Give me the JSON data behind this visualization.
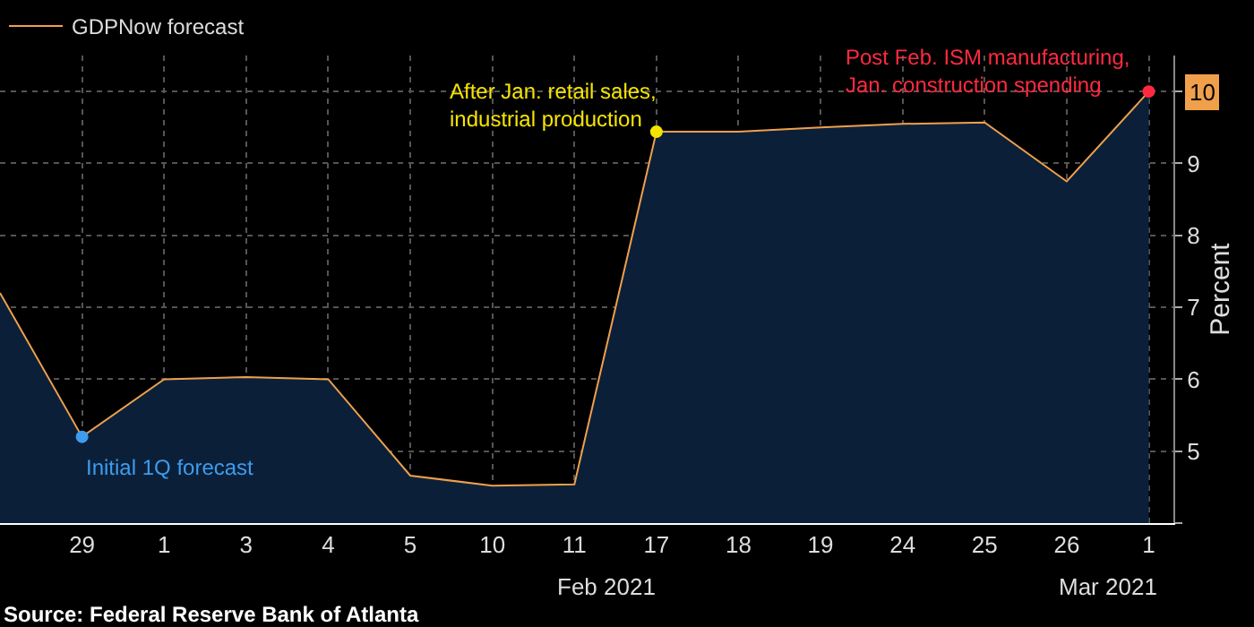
{
  "chart_data": {
    "type": "area",
    "categories": [
      null,
      "29",
      "1",
      "3",
      "4",
      "5",
      "10",
      "11",
      "17",
      "18",
      "19",
      "24",
      "25",
      "26",
      "1"
    ],
    "series": [
      {
        "color": "#0b2038",
        "values": [
          7.2,
          5.2,
          6.0,
          6.03,
          6.0,
          4.66,
          4.52,
          4.54,
          9.44,
          9.44,
          9.5,
          9.55,
          9.57,
          8.75,
          10.0
        ]
      },
      {
        "type": "line",
        "name": "GDPNow forecast",
        "color": "#f0a04b",
        "values": [
          7.2,
          5.2,
          6.0,
          6.03,
          6.0,
          4.66,
          4.52,
          4.54,
          9.44,
          9.44,
          9.5,
          9.55,
          9.57,
          8.75,
          10.0
        ],
        "value_labels": [
          null,
          null,
          null,
          null,
          null,
          null,
          null,
          null,
          null,
          null,
          null,
          null,
          null,
          null,
          "10"
        ]
      },
      {
        "type": "scatter",
        "marker": "circle",
        "colors": [
          null,
          "#3d9cf0",
          null,
          null,
          null,
          null,
          null,
          null,
          "#f5e400",
          null,
          null,
          null,
          null,
          null,
          "#ff2a40"
        ],
        "values": [
          null,
          5.2,
          null,
          null,
          null,
          null,
          null,
          null,
          9.44,
          null,
          null,
          null,
          null,
          null,
          10.0
        ]
      }
    ],
    "ylim": [
      4,
      10.5
    ],
    "yticks": [
      {
        "value": 4,
        "label": null
      },
      5,
      6,
      7,
      8,
      9,
      {
        "value": 10,
        "label": null
      }
    ],
    "ylabel": "Percent",
    "annotations": [
      "Initial 1Q forecast",
      "After Jan. retail sales,\nindustrial production",
      "Post Feb. ISM manufacturing,\nJan. construction spending",
      "Feb 2021",
      "Mar 2021",
      "Source: Federal Reserve Bank of Atlanta"
    ],
    "grid": true,
    "legend": "top left"
  }
}
